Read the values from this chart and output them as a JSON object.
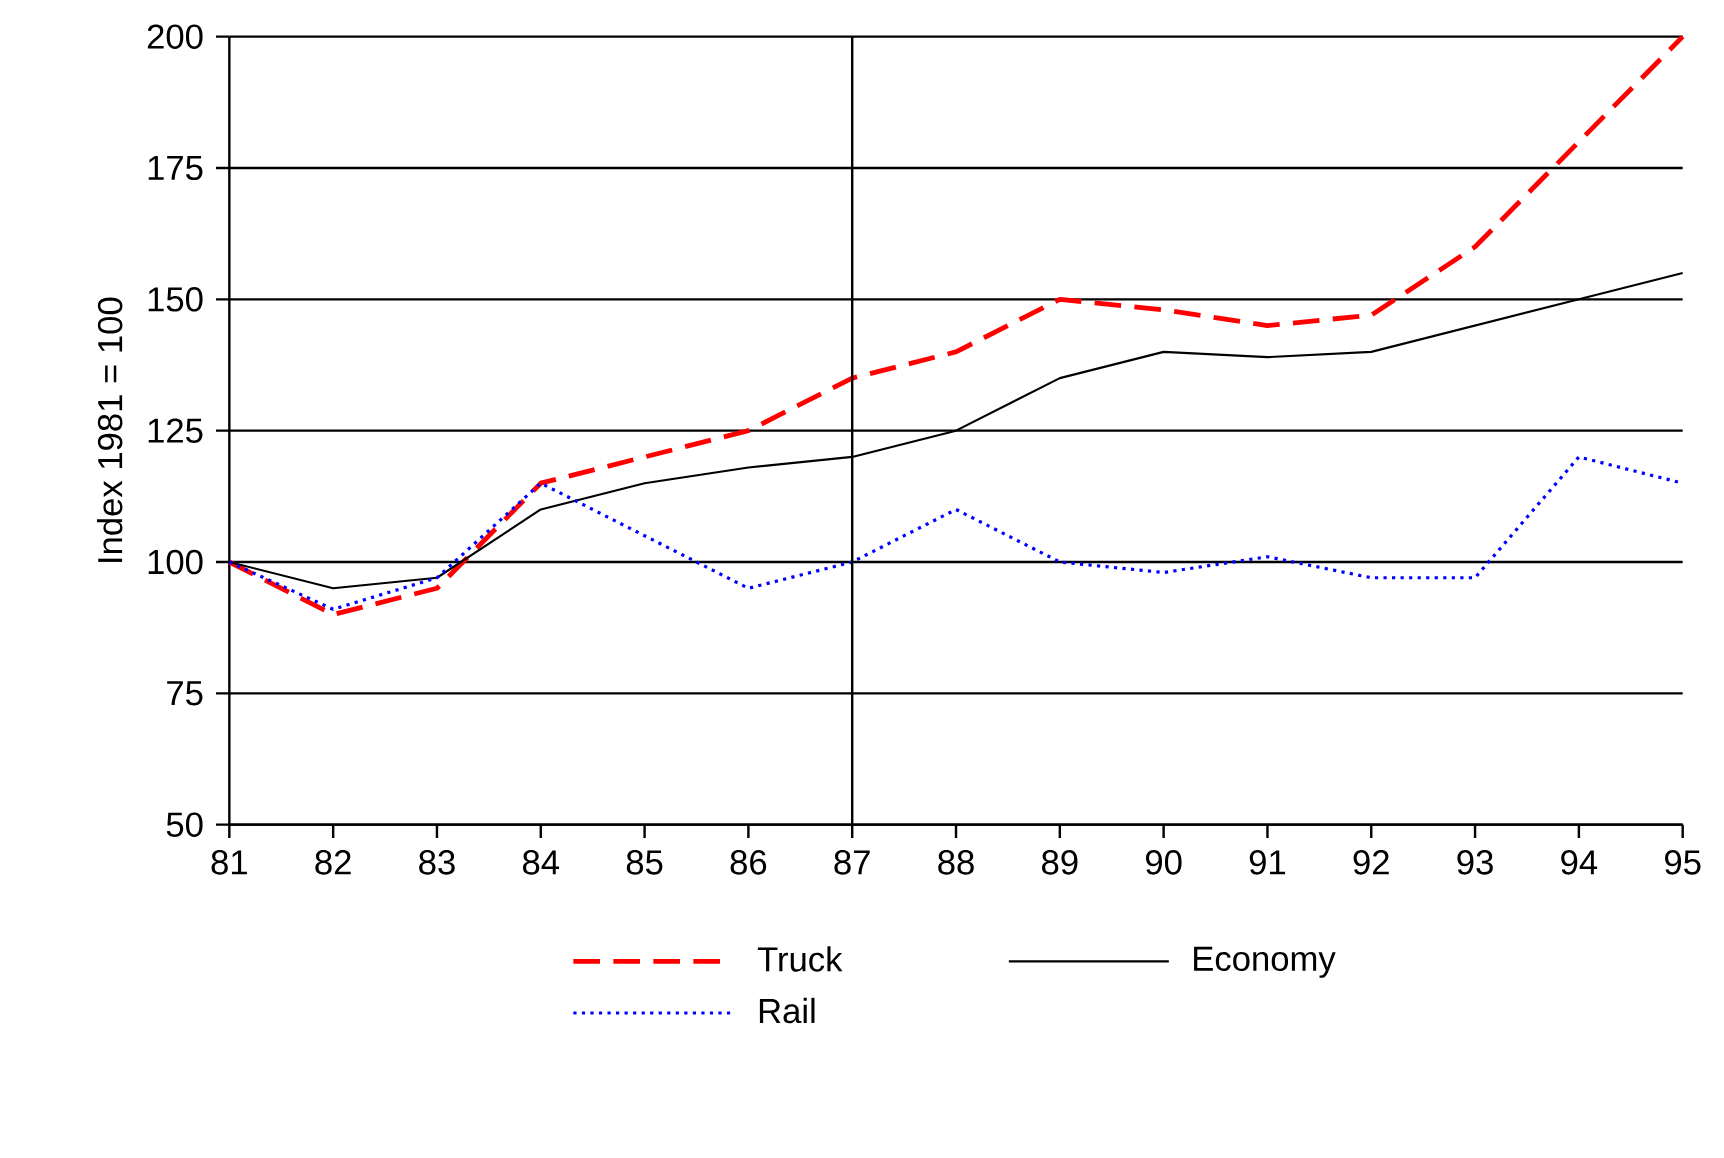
{
  "chart_data": {
    "type": "line",
    "ylabel": "Index 1981 = 100",
    "x": [
      81,
      82,
      83,
      84,
      85,
      86,
      87,
      88,
      89,
      90,
      91,
      92,
      93,
      94,
      95
    ],
    "series": [
      {
        "name": "Truck",
        "color": "#ff0000",
        "line_style": "dashed",
        "values": [
          100,
          90,
          95,
          115,
          120,
          125,
          135,
          140,
          150,
          148,
          145,
          147,
          160,
          180,
          200
        ]
      },
      {
        "name": "Economy",
        "color": "#000000",
        "line_style": "solid",
        "values": [
          100,
          95,
          97,
          110,
          115,
          118,
          120,
          125,
          135,
          140,
          139,
          140,
          145,
          150,
          155
        ]
      },
      {
        "name": "Rail",
        "color": "#0000ff",
        "line_style": "dotted",
        "values": [
          100,
          91,
          97,
          115,
          105,
          95,
          100,
          110,
          100,
          98,
          101,
          97,
          97,
          120,
          115
        ]
      }
    ],
    "xlim": [
      81,
      95
    ],
    "ylim": [
      50,
      200
    ],
    "xticks": [
      81,
      82,
      83,
      84,
      85,
      86,
      87,
      88,
      89,
      90,
      91,
      92,
      93,
      94,
      95
    ],
    "yticks": [
      50,
      75,
      100,
      125,
      150,
      175,
      200
    ],
    "ref_lines": [
      {
        "axis": "x",
        "value": 87,
        "color": "#000000"
      }
    ],
    "grid": "y",
    "legend": "bottom"
  }
}
